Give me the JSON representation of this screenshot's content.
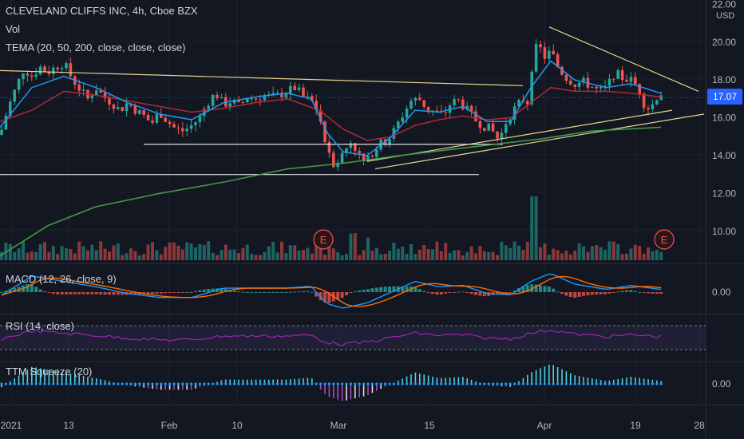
{
  "header": {
    "title": "CLEVELAND CLIFFS INC, 4h, Cboe BZX",
    "vol_label": "Vol",
    "tema_label": "TEMA (20, 50, 200, close, close, close)",
    "macd_label": "MACD (12, 26, close, 9)",
    "rsi_label": "RSI (14, close)",
    "ttm_label": "TTM Squeeze (20)"
  },
  "last_price": "17.07",
  "currency": "USD",
  "earnings_badge": "E",
  "colors": {
    "background": "#131722",
    "up": "#26a69a",
    "down": "#ef5350",
    "tema_fast": "#2196f3",
    "tema_mid": "#b22833",
    "tema_slow": "#43a047",
    "trendline": "#e6d38a",
    "level_line": "#e0e0e0",
    "macd_line": "#2196f3",
    "signal_line": "#ff6d00",
    "rsi_line": "#9c27b0",
    "price_tag": "#2962ff"
  },
  "chart_data": {
    "type": "line",
    "x_ticks": [
      "2021",
      "13",
      "Feb",
      "10",
      "Mar",
      "15",
      "Apr",
      "19",
      "28"
    ],
    "price_axis": {
      "ticks": [
        "22.00",
        "20.00",
        "18.00",
        "16.00",
        "14.00",
        "12.00",
        "10.00"
      ],
      "range": [
        8.5,
        22.2
      ]
    },
    "macd_axis_tick": "0.00",
    "ttm_axis_tick": "0.00",
    "price_path": [
      [
        0,
        15.1
      ],
      [
        10,
        16.5
      ],
      [
        20,
        17.6
      ],
      [
        30,
        18.6
      ],
      [
        40,
        18.2
      ],
      [
        50,
        18.7
      ],
      [
        60,
        18.4
      ],
      [
        70,
        18.7
      ],
      [
        80,
        18.9
      ],
      [
        90,
        18.1
      ],
      [
        100,
        17.5
      ],
      [
        110,
        17.0
      ],
      [
        120,
        17.6
      ],
      [
        130,
        17.1
      ],
      [
        140,
        16.8
      ],
      [
        150,
        16.4
      ],
      [
        160,
        16.8
      ],
      [
        170,
        16.4
      ],
      [
        180,
        16.1
      ],
      [
        190,
        15.7
      ],
      [
        200,
        16.3
      ],
      [
        210,
        15.8
      ],
      [
        220,
        15.4
      ],
      [
        230,
        15.3
      ],
      [
        240,
        15.6
      ],
      [
        250,
        16.0
      ],
      [
        260,
        16.8
      ],
      [
        270,
        17.3
      ],
      [
        280,
        16.7
      ],
      [
        290,
        16.9
      ],
      [
        300,
        16.6
      ],
      [
        310,
        17.1
      ],
      [
        320,
        17.0
      ],
      [
        330,
        17.2
      ],
      [
        340,
        17.1
      ],
      [
        350,
        17.2
      ],
      [
        360,
        17.4
      ],
      [
        370,
        17.6
      ],
      [
        380,
        17.1
      ],
      [
        390,
        16.9
      ],
      [
        400,
        16.2
      ],
      [
        405,
        15.0
      ],
      [
        410,
        14.5
      ],
      [
        418,
        13.6
      ],
      [
        425,
        13.8
      ],
      [
        432,
        14.3
      ],
      [
        440,
        14.8
      ],
      [
        450,
        14.0
      ],
      [
        458,
        13.5
      ],
      [
        465,
        14.1
      ],
      [
        475,
        14.6
      ],
      [
        485,
        14.8
      ],
      [
        495,
        15.4
      ],
      [
        505,
        16.2
      ],
      [
        515,
        16.9
      ],
      [
        525,
        17.0
      ],
      [
        535,
        16.5
      ],
      [
        545,
        16.3
      ],
      [
        555,
        16.1
      ],
      [
        565,
        16.8
      ],
      [
        575,
        16.9
      ],
      [
        585,
        16.4
      ],
      [
        595,
        15.9
      ],
      [
        605,
        15.6
      ],
      [
        615,
        15.4
      ],
      [
        625,
        14.8
      ],
      [
        635,
        15.9
      ],
      [
        645,
        16.5
      ],
      [
        655,
        17.0
      ],
      [
        662,
        16.8
      ],
      [
        668,
        19.5
      ],
      [
        675,
        19.8
      ],
      [
        682,
        19.2
      ],
      [
        690,
        19.5
      ],
      [
        700,
        18.6
      ],
      [
        710,
        18.1
      ],
      [
        720,
        17.8
      ],
      [
        730,
        17.9
      ],
      [
        740,
        17.7
      ],
      [
        750,
        17.4
      ],
      [
        760,
        17.6
      ],
      [
        770,
        18.4
      ],
      [
        780,
        18.1
      ],
      [
        790,
        18.0
      ],
      [
        800,
        17.6
      ],
      [
        808,
        16.6
      ],
      [
        815,
        16.5
      ],
      [
        822,
        17.1
      ],
      [
        828,
        17.3
      ]
    ],
    "tema_fast": [
      [
        0,
        15.5
      ],
      [
        40,
        17.6
      ],
      [
        80,
        18.2
      ],
      [
        120,
        17.6
      ],
      [
        160,
        16.8
      ],
      [
        200,
        16.2
      ],
      [
        240,
        15.9
      ],
      [
        280,
        16.8
      ],
      [
        320,
        17.1
      ],
      [
        360,
        17.3
      ],
      [
        390,
        17.0
      ],
      [
        410,
        15.2
      ],
      [
        430,
        14.2
      ],
      [
        460,
        14.0
      ],
      [
        490,
        15.0
      ],
      [
        520,
        16.4
      ],
      [
        550,
        16.3
      ],
      [
        580,
        16.6
      ],
      [
        610,
        15.8
      ],
      [
        640,
        15.8
      ],
      [
        665,
        17.6
      ],
      [
        690,
        19.0
      ],
      [
        720,
        18.0
      ],
      [
        760,
        17.6
      ],
      [
        790,
        17.8
      ],
      [
        828,
        17.3
      ]
    ],
    "tema_mid": [
      [
        0,
        15.8
      ],
      [
        40,
        16.4
      ],
      [
        80,
        17.4
      ],
      [
        120,
        17.2
      ],
      [
        160,
        16.9
      ],
      [
        200,
        16.6
      ],
      [
        240,
        16.3
      ],
      [
        280,
        16.5
      ],
      [
        320,
        16.8
      ],
      [
        360,
        17.0
      ],
      [
        400,
        16.4
      ],
      [
        430,
        15.4
      ],
      [
        460,
        14.8
      ],
      [
        490,
        15.0
      ],
      [
        520,
        15.6
      ],
      [
        550,
        15.9
      ],
      [
        580,
        16.1
      ],
      [
        610,
        15.9
      ],
      [
        640,
        16.0
      ],
      [
        665,
        16.8
      ],
      [
        690,
        17.6
      ],
      [
        720,
        17.4
      ],
      [
        760,
        17.4
      ],
      [
        790,
        17.3
      ],
      [
        828,
        17.1
      ]
    ],
    "tema_slow": [
      [
        0,
        8.7
      ],
      [
        60,
        10.3
      ],
      [
        120,
        11.3
      ],
      [
        200,
        12.0
      ],
      [
        280,
        12.6
      ],
      [
        360,
        13.3
      ],
      [
        430,
        13.6
      ],
      [
        500,
        14.0
      ],
      [
        560,
        14.3
      ],
      [
        620,
        14.6
      ],
      [
        680,
        14.9
      ],
      [
        740,
        15.3
      ],
      [
        828,
        15.5
      ]
    ],
    "trendlines": [
      {
        "from": [
          0,
          18.5
        ],
        "to": [
          655,
          17.7
        ],
        "style": "descending resistance"
      },
      {
        "from": [
          688,
          20.8
        ],
        "to": [
          875,
          17.4
        ],
        "style": "descending resistance"
      },
      {
        "from": [
          460,
          13.7
        ],
        "to": [
          842,
          16.4
        ],
        "style": "ascending support"
      },
      {
        "from": [
          470,
          13.3
        ],
        "to": [
          882,
          16.2
        ],
        "style": "ascending support"
      }
    ],
    "levels": [
      {
        "price": 14.6,
        "x_from": 180,
        "x_to": 630
      },
      {
        "price": 13.0,
        "x_from": 0,
        "x_to": 600
      }
    ],
    "earnings_markers_x": [
      405,
      832
    ]
  }
}
